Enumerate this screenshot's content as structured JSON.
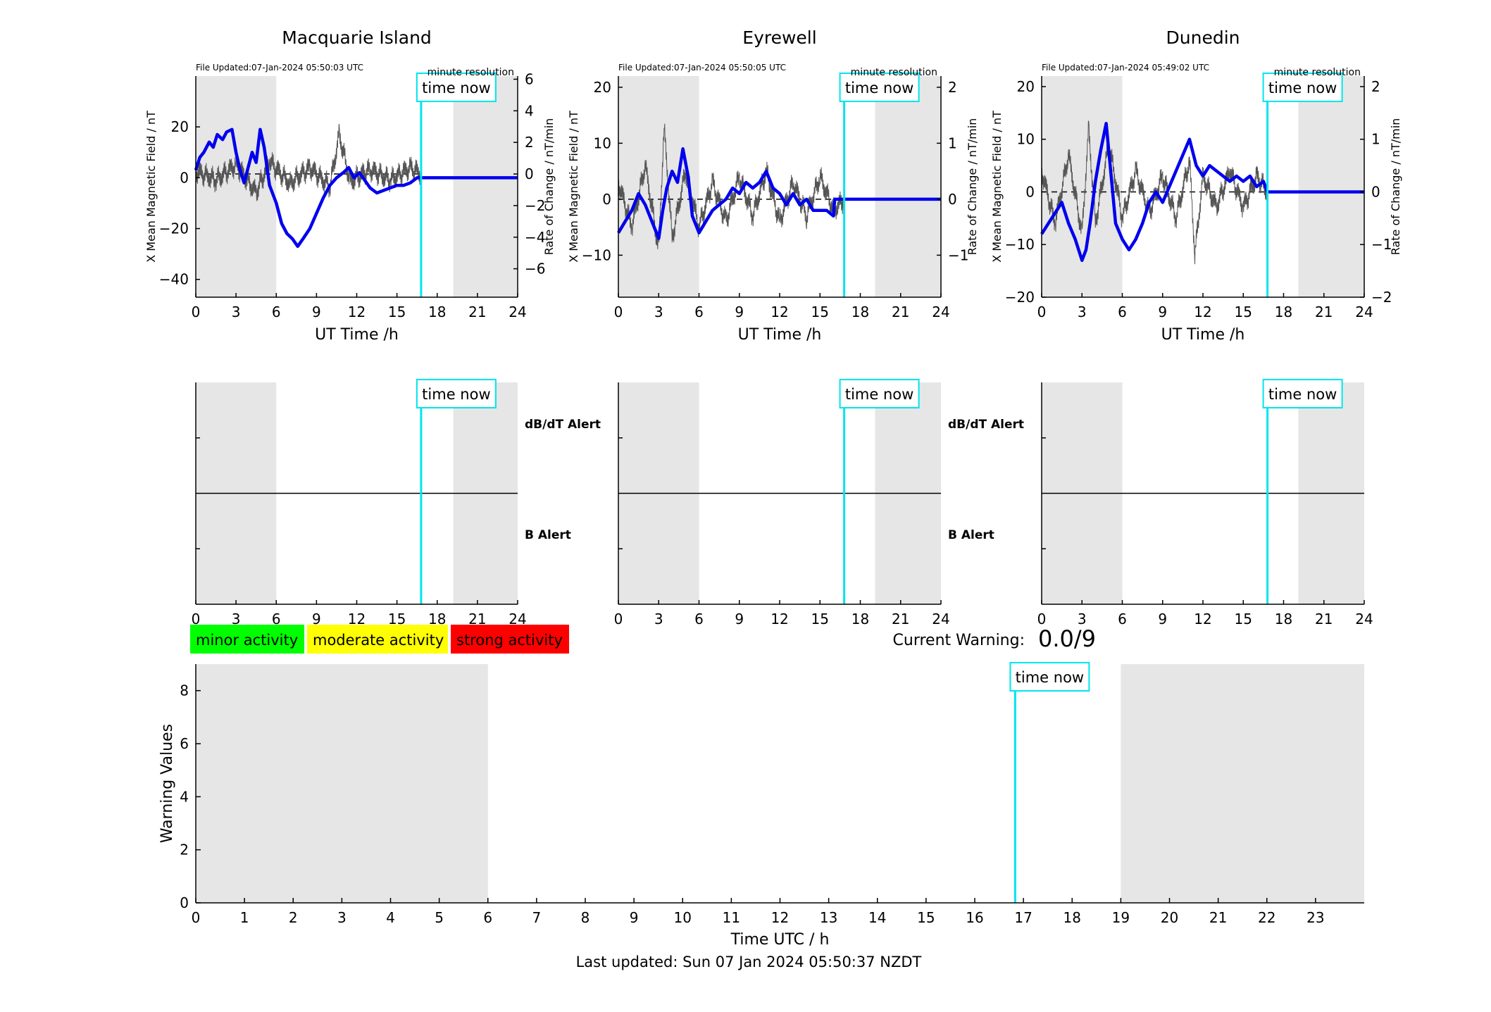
{
  "top_charts": [
    {
      "title": "Macquarie Island",
      "file_updated": "File Updated:07-Jan-2024 05:50:03 UTC",
      "resolution": "minute resolution",
      "time_now_label": "time now",
      "xlabel": "UT Time /h",
      "ylabel_left": "X Mean Magnetic Field / nT",
      "ylabel_right": "Rate of Change / nT/min",
      "x_ticks": [
        0,
        3,
        6,
        9,
        12,
        15,
        18,
        21,
        24
      ],
      "y_left_ticks": [
        -40,
        -20,
        0,
        20
      ],
      "y_right_ticks": [
        -6,
        -4,
        -2,
        0,
        2,
        4,
        6
      ],
      "ylim_left": [
        -47,
        40
      ],
      "ylim_right": [
        -7.8,
        6.2
      ],
      "night_shading": [
        [
          0,
          6
        ],
        [
          19.2,
          24
        ]
      ],
      "time_now": 16.8,
      "mean_field": [
        [
          0,
          3
        ],
        [
          0.3,
          8
        ],
        [
          0.6,
          10
        ],
        [
          1,
          14
        ],
        [
          1.3,
          12
        ],
        [
          1.6,
          17
        ],
        [
          2,
          15
        ],
        [
          2.3,
          18
        ],
        [
          2.7,
          19
        ],
        [
          3,
          10
        ],
        [
          3.3,
          3
        ],
        [
          3.6,
          -2
        ],
        [
          3.9,
          4
        ],
        [
          4.2,
          10
        ],
        [
          4.5,
          6
        ],
        [
          4.8,
          19
        ],
        [
          5.1,
          12
        ],
        [
          5.5,
          -3
        ],
        [
          6,
          -10
        ],
        [
          6.4,
          -18
        ],
        [
          6.8,
          -22
        ],
        [
          7.2,
          -24
        ],
        [
          7.6,
          -27
        ],
        [
          8,
          -24
        ],
        [
          8.5,
          -20
        ],
        [
          9,
          -14
        ],
        [
          9.5,
          -8
        ],
        [
          10,
          -3
        ],
        [
          10.5,
          0
        ],
        [
          11,
          2
        ],
        [
          11.4,
          4
        ],
        [
          11.8,
          0
        ],
        [
          12.2,
          2
        ],
        [
          12.6,
          -1
        ],
        [
          13,
          -4
        ],
        [
          13.5,
          -6
        ],
        [
          14,
          -5
        ],
        [
          14.5,
          -4
        ],
        [
          15,
          -3
        ],
        [
          15.5,
          -3
        ],
        [
          16,
          -2
        ],
        [
          16.5,
          0
        ],
        [
          16.8,
          0
        ],
        [
          24,
          0
        ]
      ],
      "rate_of_change": [
        [
          0,
          0.2
        ],
        [
          1.5,
          -0.4
        ],
        [
          3,
          0.6
        ],
        [
          4.5,
          -1.2
        ],
        [
          5.5,
          0.8
        ],
        [
          7,
          -0.6
        ],
        [
          8.5,
          0.4
        ],
        [
          10,
          -0.8
        ],
        [
          10.7,
          2.5
        ],
        [
          11.5,
          -0.5
        ],
        [
          13,
          0.3
        ],
        [
          14.5,
          -0.4
        ],
        [
          16,
          0.4
        ],
        [
          16.8,
          0
        ]
      ]
    },
    {
      "title": "Eyrewell",
      "file_updated": "File Updated:07-Jan-2024 05:50:05 UTC",
      "resolution": "minute resolution",
      "time_now_label": "time now",
      "xlabel": "UT Time /h",
      "ylabel_left": "X Mean Magnetic Field / nT",
      "ylabel_right": "Rate of Change / nT/min",
      "x_ticks": [
        0,
        3,
        6,
        9,
        12,
        15,
        18,
        21,
        24
      ],
      "y_left_ticks": [
        -10,
        0,
        10,
        20
      ],
      "y_right_ticks": [
        -1,
        0,
        1,
        2
      ],
      "ylim_left": [
        -17.5,
        22
      ],
      "ylim_right": [
        -1.75,
        2.2
      ],
      "night_shading": [
        [
          0,
          6
        ],
        [
          19.1,
          24
        ]
      ],
      "time_now": 16.8,
      "mean_field": [
        [
          0,
          -6
        ],
        [
          0.5,
          -4
        ],
        [
          1,
          -2
        ],
        [
          1.5,
          1
        ],
        [
          2,
          -1
        ],
        [
          2.5,
          -4
        ],
        [
          3,
          -7
        ],
        [
          3.3,
          -2
        ],
        [
          3.6,
          2
        ],
        [
          4,
          5
        ],
        [
          4.4,
          3
        ],
        [
          4.8,
          9
        ],
        [
          5.2,
          4
        ],
        [
          5.5,
          -3
        ],
        [
          6,
          -6
        ],
        [
          6.5,
          -4
        ],
        [
          7,
          -2
        ],
        [
          7.5,
          -1
        ],
        [
          8,
          0
        ],
        [
          8.5,
          2
        ],
        [
          9,
          1
        ],
        [
          9.5,
          3
        ],
        [
          10,
          2
        ],
        [
          10.5,
          3
        ],
        [
          11,
          5
        ],
        [
          11.5,
          2
        ],
        [
          12,
          1
        ],
        [
          12.5,
          -1
        ],
        [
          13,
          1
        ],
        [
          13.5,
          -1
        ],
        [
          14,
          0
        ],
        [
          14.5,
          -2
        ],
        [
          15,
          -2
        ],
        [
          15.5,
          -2
        ],
        [
          16,
          -3
        ],
        [
          16.1,
          0
        ],
        [
          24,
          0
        ]
      ],
      "rate_of_change": [
        [
          0,
          0.3
        ],
        [
          1,
          -0.5
        ],
        [
          2,
          0.6
        ],
        [
          3,
          -0.9
        ],
        [
          3.4,
          1.3
        ],
        [
          4,
          -0.7
        ],
        [
          5,
          0.5
        ],
        [
          6,
          -0.5
        ],
        [
          7,
          0.3
        ],
        [
          8,
          -0.4
        ],
        [
          9,
          0.4
        ],
        [
          10,
          -0.3
        ],
        [
          11,
          0.5
        ],
        [
          12,
          -0.4
        ],
        [
          13,
          0.3
        ],
        [
          14,
          -0.3
        ],
        [
          15,
          0.4
        ],
        [
          16,
          -0.2
        ],
        [
          16.8,
          0
        ]
      ]
    },
    {
      "title": "Dunedin",
      "file_updated": "File Updated:07-Jan-2024 05:49:02 UTC",
      "resolution": "minute resolution",
      "time_now_label": "time now",
      "xlabel": "UT Time /h",
      "ylabel_left": "X Mean Magnetic Field / nT",
      "ylabel_right": "Rate of Change / nT/min",
      "x_ticks": [
        0,
        3,
        6,
        9,
        12,
        15,
        18,
        21,
        24
      ],
      "y_left_ticks": [
        -20,
        -10,
        0,
        10,
        20
      ],
      "y_right_ticks": [
        -2,
        -1,
        0,
        1,
        2
      ],
      "ylim_left": [
        -20,
        22
      ],
      "ylim_right": [
        -2,
        2.2
      ],
      "night_shading": [
        [
          0,
          6
        ],
        [
          19.1,
          24
        ]
      ],
      "time_now": 16.8,
      "mean_field": [
        [
          0,
          -8
        ],
        [
          0.5,
          -6
        ],
        [
          1,
          -4
        ],
        [
          1.5,
          -2
        ],
        [
          2,
          -6
        ],
        [
          2.5,
          -9
        ],
        [
          3,
          -13
        ],
        [
          3.3,
          -11
        ],
        [
          3.6,
          -6
        ],
        [
          4,
          2
        ],
        [
          4.4,
          8
        ],
        [
          4.8,
          13
        ],
        [
          5.1,
          5
        ],
        [
          5.5,
          -6
        ],
        [
          6,
          -9
        ],
        [
          6.5,
          -11
        ],
        [
          7,
          -9
        ],
        [
          7.5,
          -6
        ],
        [
          8,
          -2
        ],
        [
          8.5,
          0
        ],
        [
          9,
          -2
        ],
        [
          9.5,
          1
        ],
        [
          10,
          4
        ],
        [
          10.5,
          7
        ],
        [
          11,
          10
        ],
        [
          11.5,
          5
        ],
        [
          12,
          3
        ],
        [
          12.5,
          5
        ],
        [
          13,
          4
        ],
        [
          13.5,
          3
        ],
        [
          14,
          2
        ],
        [
          14.5,
          3
        ],
        [
          15,
          2
        ],
        [
          15.5,
          3
        ],
        [
          16,
          1
        ],
        [
          16.5,
          2
        ],
        [
          16.8,
          0
        ],
        [
          24,
          0
        ]
      ],
      "rate_of_change": [
        [
          0,
          0.4
        ],
        [
          1,
          -0.6
        ],
        [
          2,
          0.7
        ],
        [
          3,
          -0.8
        ],
        [
          3.5,
          1.2
        ],
        [
          4,
          -0.6
        ],
        [
          5,
          0.9
        ],
        [
          6,
          -0.5
        ],
        [
          7,
          0.4
        ],
        [
          8,
          -0.4
        ],
        [
          9,
          0.3
        ],
        [
          10,
          -0.5
        ],
        [
          11,
          0.6
        ],
        [
          11.4,
          -1.2
        ],
        [
          12,
          0.3
        ],
        [
          13,
          -0.3
        ],
        [
          14,
          0.4
        ],
        [
          15,
          -0.3
        ],
        [
          16,
          0.3
        ],
        [
          16.8,
          0
        ]
      ]
    }
  ],
  "alert_charts": [
    {
      "dbdt_label": "dB/dT Alert",
      "b_label": "B Alert",
      "time_now_label": "time now",
      "time_now": 16.8,
      "night_shading": [
        [
          0,
          6
        ],
        [
          19.2,
          24
        ]
      ],
      "x_ticks": [
        0,
        3,
        6,
        9,
        12,
        15,
        18,
        21,
        24
      ]
    },
    {
      "dbdt_label": "dB/dT Alert",
      "b_label": "B Alert",
      "time_now_label": "time now",
      "time_now": 16.8,
      "night_shading": [
        [
          0,
          6
        ],
        [
          19.1,
          24
        ]
      ],
      "x_ticks": [
        0,
        3,
        6,
        9,
        12,
        15,
        18,
        21,
        24
      ]
    },
    {
      "time_now_label": "time now",
      "time_now": 16.8,
      "night_shading": [
        [
          0,
          6
        ],
        [
          19.1,
          24
        ]
      ],
      "x_ticks": [
        0,
        3,
        6,
        9,
        12,
        15,
        18,
        21,
        24
      ]
    }
  ],
  "legend": {
    "items": [
      {
        "label": "minor activity",
        "color": "#00ff00"
      },
      {
        "label": "moderate activity",
        "color": "#ffff00"
      },
      {
        "label": "strong activity",
        "color": "#ff0000"
      }
    ]
  },
  "current_warning": {
    "label": "Current Warning:",
    "value": "0.0/9"
  },
  "warning_chart": {
    "xlabel": "Time UTC / h",
    "ylabel": "Warning Values",
    "x_ticks": [
      0,
      1,
      2,
      3,
      4,
      5,
      6,
      7,
      8,
      9,
      10,
      11,
      12,
      13,
      14,
      15,
      16,
      17,
      18,
      19,
      20,
      21,
      22,
      23
    ],
    "y_ticks": [
      0,
      2,
      4,
      6,
      8
    ],
    "xlim": [
      0,
      24
    ],
    "ylim": [
      0,
      9
    ],
    "night_shading": [
      [
        0,
        6
      ],
      [
        19,
        24
      ]
    ],
    "time_now": 16.83,
    "time_now_label": "time now"
  },
  "footer": {
    "last_updated": "Last updated: Sun 07 Jan 2024 05:50:37 NZDT"
  },
  "chart_data": [
    {
      "type": "line",
      "title": "Macquarie Island",
      "xlabel": "UT Time /h",
      "ylabel": "X Mean Magnetic Field / nT",
      "xlim": [
        0,
        24
      ],
      "ylim": [
        -47,
        40
      ]
    },
    {
      "type": "line",
      "title": "Eyrewell",
      "xlabel": "UT Time /h",
      "ylabel": "X Mean Magnetic Field / nT",
      "xlim": [
        0,
        24
      ],
      "ylim": [
        -17.5,
        22
      ]
    },
    {
      "type": "line",
      "title": "Dunedin",
      "xlabel": "UT Time /h",
      "ylabel": "X Mean Magnetic Field / nT",
      "xlim": [
        0,
        24
      ],
      "ylim": [
        -20,
        22
      ]
    },
    {
      "type": "bar",
      "xlabel": "Time UTC / h",
      "ylabel": "Warning Values",
      "xlim": [
        0,
        24
      ],
      "ylim": [
        0,
        9
      ]
    }
  ],
  "colors": {
    "mean_field": "#0000ee",
    "rate_of_change": "#555555",
    "time_now": "#00e5ee",
    "night": "#e6e6e6",
    "axis_blue": "#0000ee",
    "alert_blue": "#0000ee"
  }
}
